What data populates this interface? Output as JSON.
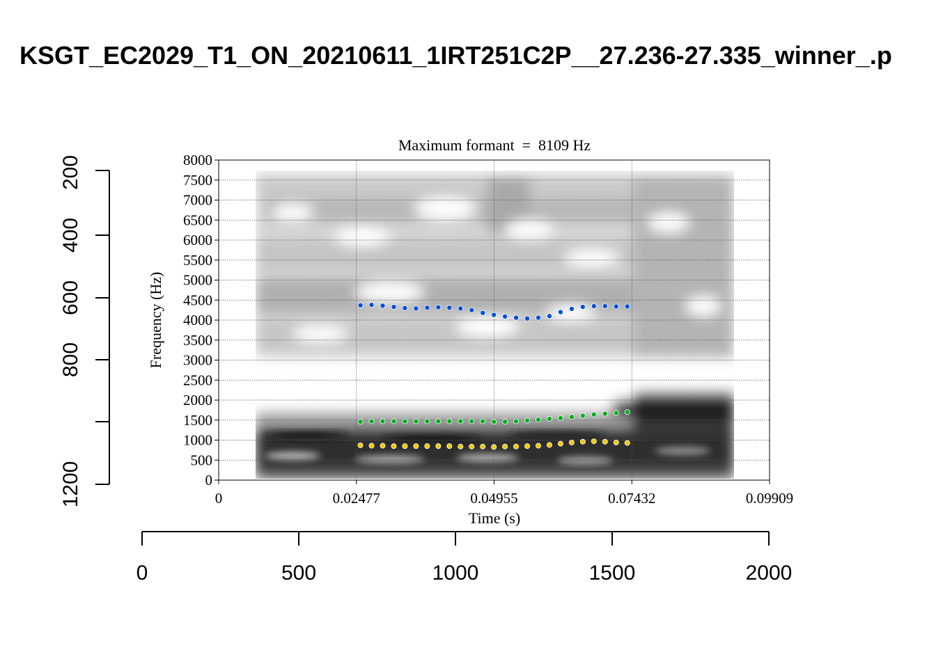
{
  "page_title": "KSGT_EC2029_T1_ON_20210611_1IRT251C2P__27.236-27.335_winner_.p",
  "outer_axes": {
    "y_ticks": [
      "200",
      "400",
      "600",
      "800",
      "1200"
    ],
    "x_ticks": [
      "0",
      "500",
      "1000",
      "1500",
      "2000"
    ]
  },
  "chart_data": {
    "type": "scatter",
    "title": "Maximum formant  =  8109 Hz",
    "xlabel": "Time (s)",
    "ylabel": "Frequency (Hz)",
    "xlim": [
      0,
      0.09909
    ],
    "ylim": [
      0,
      8000
    ],
    "x_tick_labels": [
      "0",
      "0.02477",
      "0.04955",
      "0.07432",
      "0.09909"
    ],
    "y_tick_labels": [
      "0",
      "500",
      "1000",
      "1500",
      "2000",
      "2500",
      "3000",
      "3500",
      "4000",
      "4500",
      "5000",
      "5500",
      "6000",
      "6500",
      "7000",
      "7500",
      "8000"
    ],
    "grid": true,
    "background": "spectrogram",
    "spectrogram_time_range": [
      0.0066,
      0.0925
    ],
    "series": [
      {
        "color": "#0050d8",
        "x": [
          0.0255,
          0.0275,
          0.0295,
          0.0315,
          0.0335,
          0.0355,
          0.0375,
          0.0395,
          0.0415,
          0.0435,
          0.0455,
          0.0475,
          0.0495,
          0.0515,
          0.0535,
          0.0555,
          0.0575,
          0.0595,
          0.0615,
          0.0635,
          0.0655,
          0.0675,
          0.0695,
          0.0715,
          0.0735
        ],
        "values": [
          4370,
          4380,
          4360,
          4330,
          4300,
          4290,
          4310,
          4320,
          4310,
          4290,
          4250,
          4180,
          4130,
          4090,
          4060,
          4040,
          4060,
          4100,
          4200,
          4280,
          4330,
          4350,
          4350,
          4340,
          4340
        ]
      },
      {
        "color": "#00b020",
        "x": [
          0.0255,
          0.0275,
          0.0295,
          0.0315,
          0.0335,
          0.0355,
          0.0375,
          0.0395,
          0.0415,
          0.0435,
          0.0455,
          0.0475,
          0.0495,
          0.0515,
          0.0535,
          0.0555,
          0.0575,
          0.0595,
          0.0615,
          0.0635,
          0.0655,
          0.0675,
          0.0695,
          0.0715,
          0.0735
        ],
        "values": [
          1460,
          1470,
          1470,
          1470,
          1470,
          1470,
          1470,
          1470,
          1470,
          1470,
          1470,
          1470,
          1460,
          1460,
          1470,
          1490,
          1510,
          1530,
          1550,
          1580,
          1610,
          1640,
          1660,
          1680,
          1700
        ]
      },
      {
        "color": "#f0c800",
        "x": [
          0.0255,
          0.0275,
          0.0295,
          0.0315,
          0.0335,
          0.0355,
          0.0375,
          0.0395,
          0.0415,
          0.0435,
          0.0455,
          0.0475,
          0.0495,
          0.0515,
          0.0535,
          0.0555,
          0.0575,
          0.0595,
          0.0615,
          0.0635,
          0.0655,
          0.0675,
          0.0695,
          0.0715,
          0.0735
        ],
        "values": [
          870,
          860,
          860,
          850,
          850,
          850,
          850,
          850,
          850,
          840,
          840,
          840,
          830,
          840,
          840,
          850,
          860,
          880,
          910,
          940,
          960,
          970,
          960,
          940,
          930
        ]
      }
    ]
  }
}
